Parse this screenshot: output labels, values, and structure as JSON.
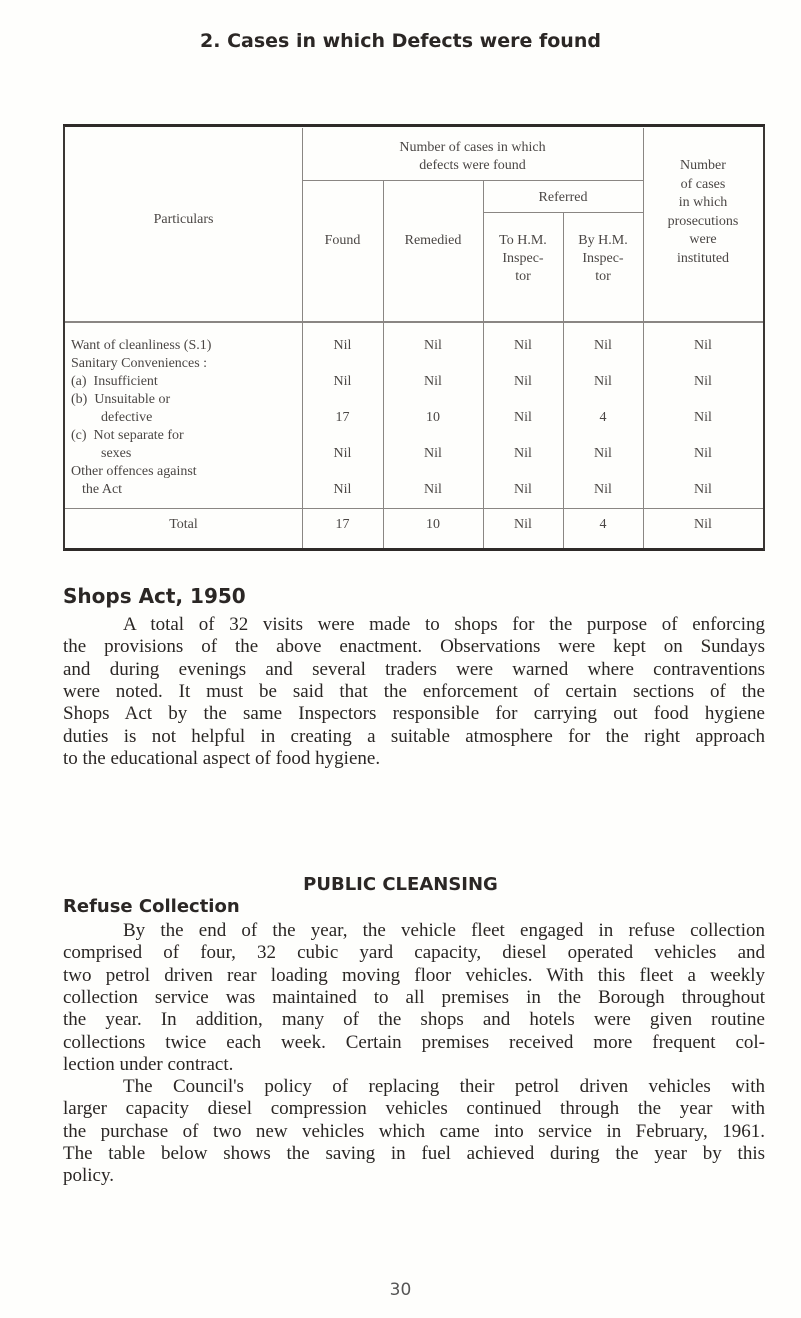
{
  "section_title": "2. Cases in which Defects were found",
  "table": {
    "headers": {
      "particulars": "Particulars",
      "group": [
        "Number of cases in which",
        "defects were found"
      ],
      "found": "Found",
      "remedied": "Remedied",
      "referred": "Referred",
      "to_hm": [
        "To H.M.",
        "Inspec-",
        "tor"
      ],
      "by_hm": [
        "By H.M.",
        "Inspec-",
        "tor"
      ],
      "prosecutions": [
        "Number",
        "of cases",
        "in which",
        "prosecutions",
        "were",
        "instituted"
      ]
    },
    "particulars_lines": [
      "Want of cleanliness (S.1)",
      "Sanitary Conveniences :",
      "(a)  Insufficient",
      "(b)  Unsuitable or",
      "defective",
      "(c)  Not separate for",
      "sexes",
      "Other offences against",
      "the Act"
    ],
    "rows": [
      {
        "found": "Nil",
        "remedied": "Nil",
        "to_hm": "Nil",
        "by_hm": "Nil",
        "prosecutions": "Nil"
      },
      {
        "found": "Nil",
        "remedied": "Nil",
        "to_hm": "Nil",
        "by_hm": "Nil",
        "prosecutions": "Nil"
      },
      {
        "found": "17",
        "remedied": "10",
        "to_hm": "Nil",
        "by_hm": "4",
        "prosecutions": "Nil"
      },
      {
        "found": "Nil",
        "remedied": "Nil",
        "to_hm": "Nil",
        "by_hm": "Nil",
        "prosecutions": "Nil"
      },
      {
        "found": "Nil",
        "remedied": "Nil",
        "to_hm": "Nil",
        "by_hm": "Nil",
        "prosecutions": "Nil"
      }
    ],
    "total": {
      "label": "Total",
      "found": "17",
      "remedied": "10",
      "to_hm": "Nil",
      "by_hm": "4",
      "prosecutions": "Nil"
    }
  },
  "shops": {
    "heading": "Shops Act, 1950",
    "lines": [
      "A total of 32 visits were made to shops for the purpose of enforcing",
      "the provisions of the above enactment.  Observations were kept on Sundays",
      "and during evenings and several traders were warned where contraventions",
      "were noted. It must be said that the enforcement of certain sections of the",
      "Shops Act by the same Inspectors responsible for carrying out food hygiene",
      "duties is not helpful in creating a suitable atmosphere for the right approach",
      "to the educational aspect of food hygiene."
    ]
  },
  "cleansing": {
    "heading": "PUBLIC CLEANSING",
    "subheading": "Refuse Collection",
    "para1": [
      "By the end of the year, the vehicle fleet engaged in refuse collection",
      "comprised of four, 32 cubic yard capacity, diesel operated vehicles and",
      "two petrol driven rear loading moving floor vehicles. With this fleet a weekly",
      "collection service was maintained to all premises in the Borough throughout",
      "the year. In addition, many of the shops and hotels were given routine",
      "collections twice each week. Certain premises received more frequent col-",
      "lection under contract."
    ],
    "para2": [
      "The Council's policy of replacing their petrol driven vehicles with",
      "larger capacity diesel compression vehicles continued through the year with",
      "the purchase of two new vehicles which came into service in February, 1961.",
      "The table below shows the saving in fuel achieved during the year by this",
      "policy."
    ]
  },
  "page_number": "30"
}
